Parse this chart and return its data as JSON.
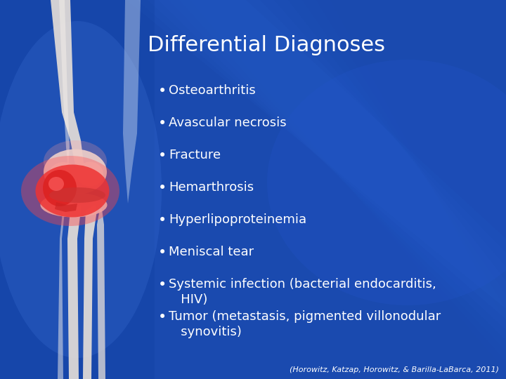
{
  "title": "Differential Diagnoses",
  "title_fontsize": 22,
  "title_color": "#ffffff",
  "bullet_items": [
    "Osteoarthritis",
    "Avascular necrosis",
    "Fracture",
    "Hemarthrosis",
    "Hyperlipoproteinemia",
    "Meniscal tear",
    "Systemic infection (bacterial endocarditis,\n   HIV)",
    "Tumor (metastasis, pigmented villonodular\n   synovitis)"
  ],
  "bullet_fontsize": 13,
  "bullet_color": "#ffffff",
  "citation": "(Horowitz, Katzap, Horowitz, & Barilla-LaBarca, 2011)",
  "citation_fontsize": 8,
  "citation_color": "#ffffff",
  "bg_blue": "#1a4aaf",
  "bg_dark_blue": "#0d2878",
  "bone_color": "#e8e0d8",
  "joint_red": "#ee3333",
  "joint_pink": "#ff8888"
}
